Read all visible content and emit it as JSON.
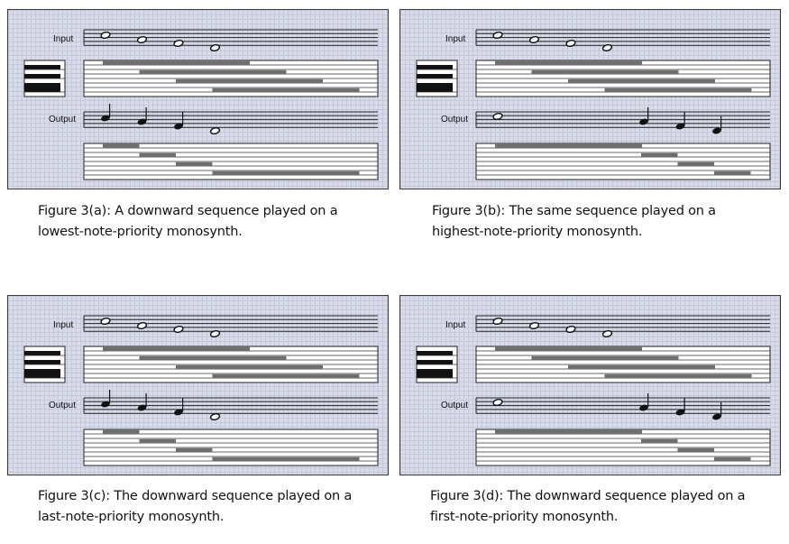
{
  "figures": [
    {
      "id": "a",
      "input_label": "Input",
      "output_label": "Output",
      "caption_line1": "Figure 3(a): A downward sequence played on a",
      "caption_line2": "lowest-note-priority monosynth.",
      "input_notes": [
        0,
        1,
        2,
        3
      ],
      "input_bars": [
        [
          0,
          1.0
        ],
        [
          1,
          1.0
        ],
        [
          2,
          1.0
        ],
        [
          3,
          1.0
        ]
      ],
      "output_notes": [
        0,
        1,
        2,
        3
      ],
      "output_note_styles": [
        "filled",
        "filled",
        "filled",
        "open"
      ],
      "output_bars": [
        [
          0,
          0.25
        ],
        [
          1,
          0.25
        ],
        [
          2,
          0.25
        ],
        [
          3,
          1.0
        ]
      ]
    },
    {
      "id": "b",
      "input_label": "Input",
      "output_label": "Output",
      "caption_line1": "Figure 3(b): The same sequence played on a",
      "caption_line2": "highest-note-priority monosynth.",
      "input_notes": [
        0,
        1,
        2,
        3
      ],
      "input_bars": [
        [
          0,
          1.0
        ],
        [
          1,
          1.0
        ],
        [
          2,
          1.0
        ],
        [
          3,
          1.0
        ]
      ],
      "output_notes": [
        0,
        4,
        5,
        6
      ],
      "output_note_styles": [
        "open",
        "filled",
        "filled",
        "filled"
      ],
      "output_bars": [
        [
          0,
          1.0
        ],
        [
          4,
          0.25
        ],
        [
          5,
          0.25
        ],
        [
          6,
          0.25
        ]
      ]
    },
    {
      "id": "c",
      "input_label": "Input",
      "output_label": "Output",
      "caption_line1": "Figure 3(c): The downward sequence played on a",
      "caption_line2": "last-note-priority monosynth.",
      "input_notes": [
        0,
        1,
        2,
        3
      ],
      "input_bars": [
        [
          0,
          1.0
        ],
        [
          1,
          1.0
        ],
        [
          2,
          1.0
        ],
        [
          3,
          1.0
        ]
      ],
      "output_notes": [
        0,
        1,
        2,
        3
      ],
      "output_note_styles": [
        "filled",
        "filled",
        "filled",
        "open"
      ],
      "output_bars": [
        [
          0,
          0.25
        ],
        [
          1,
          0.25
        ],
        [
          2,
          0.25
        ],
        [
          3,
          1.0
        ]
      ]
    },
    {
      "id": "d",
      "input_label": "Input",
      "output_label": "Output",
      "caption_line1": "Figure 3(d): The downward sequence played on a",
      "caption_line2": "first-note-priority monosynth.",
      "input_notes": [
        0,
        1,
        2,
        3
      ],
      "input_bars": [
        [
          0,
          1.0
        ],
        [
          1,
          1.0
        ],
        [
          2,
          1.0
        ],
        [
          3,
          1.0
        ]
      ],
      "output_notes": [
        0,
        4,
        5,
        6
      ],
      "output_note_styles": [
        "open",
        "filled",
        "filled",
        "filled"
      ],
      "output_bars": [
        [
          0,
          1.0
        ],
        [
          4,
          0.25
        ],
        [
          5,
          0.25
        ],
        [
          6,
          0.25
        ]
      ]
    }
  ],
  "colors": {
    "bar": "#6e6e6e",
    "staff_line": "#222222",
    "keyboard_black": "#111111"
  }
}
